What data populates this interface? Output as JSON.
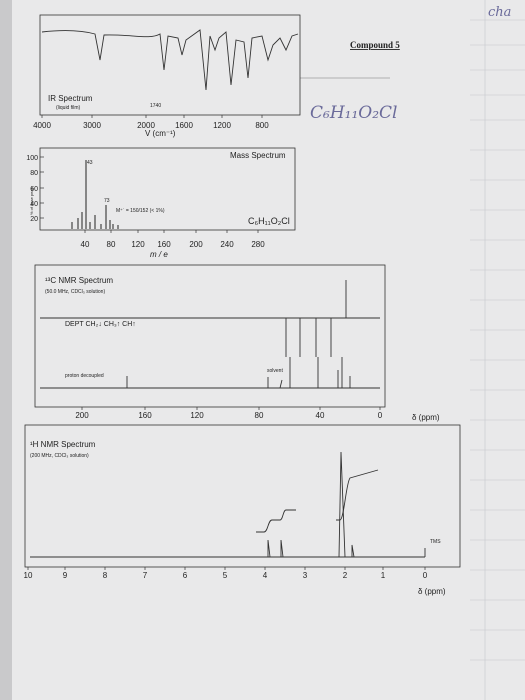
{
  "header": {
    "compound": "Compound 5",
    "handwritten_formula": "C₆H₁₁O₂Cl",
    "corner_note": "cha"
  },
  "ir": {
    "title": "IR Spectrum",
    "subtitle": "(liquid film)",
    "peak_label": "1740",
    "x_ticks": [
      "4000",
      "3000",
      "2000",
      "1600",
      "1200",
      "800"
    ],
    "x_label": "V (cm⁻¹)"
  },
  "mass": {
    "title": "Mass Spectrum",
    "y_label": "% of base peak",
    "y_ticks": [
      "100",
      "80",
      "60",
      "40",
      "20"
    ],
    "peak_labels": [
      "43",
      "73"
    ],
    "molecular_ion": "M⁺˙ = 150/152 (< 1%)",
    "formula": "C₆H₁₁O₂Cl",
    "x_ticks": [
      "40",
      "80",
      "120",
      "160",
      "200",
      "240",
      "280"
    ],
    "x_label": "m / e"
  },
  "c13": {
    "title": "¹³C NMR Spectrum",
    "subtitle": "(50.0 MHz, CDCl₃ solution)",
    "dept": "DEPT  CH₂↓ CH₃↑ CH↑",
    "proton": "proton decoupled",
    "solvent": "solvent",
    "x_ticks": [
      "200",
      "160",
      "120",
      "80",
      "40",
      "0"
    ],
    "x_unit": "δ (ppm)"
  },
  "h1": {
    "title": "¹H NMR Spectrum",
    "subtitle": "(200 MHz, CDCl₃ solution)",
    "tms": "TMS",
    "x_ticks": [
      "10",
      "9",
      "8",
      "7",
      "6",
      "5",
      "4",
      "3",
      "2",
      "1",
      "0"
    ],
    "x_unit": "δ (ppm)"
  }
}
